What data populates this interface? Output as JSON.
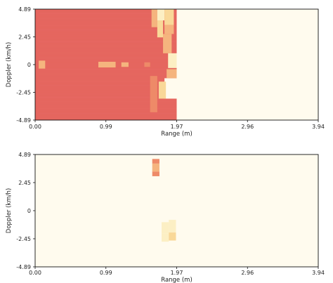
{
  "chart_data": [
    {
      "type": "heatmap",
      "xlabel": "Range (m)",
      "ylabel": "Doppler (km/h)",
      "xlim": [
        0,
        3.94
      ],
      "ylim": [
        -4.89,
        4.89
      ],
      "xticks": [
        "0.00",
        "0.99",
        "1.97",
        "2.96",
        "3.94"
      ],
      "yticks": [
        "4.89",
        "2.45",
        "0",
        "-2.45",
        "-4.89"
      ],
      "background_color": "#fffbee",
      "colors": [
        "#c8325a",
        "#d8465e",
        "#e5665f",
        "#ee8a68",
        "#f5b47e",
        "#f9d898",
        "#fcefc4",
        "#fffbee"
      ],
      "data_extent": {
        "x": [
          0,
          1.97
        ],
        "y": [
          -4.89,
          4.89
        ]
      },
      "base_intensity": 0.22,
      "cells": [
        {
          "x": [
            1.62,
            1.7
          ],
          "y": [
            3.3,
            4.89
          ],
          "v": 0.55
        },
        {
          "x": [
            1.7,
            1.8
          ],
          "y": [
            3.9,
            4.89
          ],
          "v": 0.85
        },
        {
          "x": [
            1.7,
            1.78
          ],
          "y": [
            2.4,
            3.9
          ],
          "v": 0.7
        },
        {
          "x": [
            1.8,
            1.93
          ],
          "y": [
            3.5,
            4.89
          ],
          "v": 0.75
        },
        {
          "x": [
            1.8,
            1.93
          ],
          "y": [
            2.7,
            3.5
          ],
          "v": 0.55
        },
        {
          "x": [
            1.78,
            1.9
          ],
          "y": [
            1.0,
            2.7
          ],
          "v": 0.6
        },
        {
          "x": [
            1.85,
            1.97
          ],
          "y": [
            -0.3,
            1.0
          ],
          "v": 0.85
        },
        {
          "x": [
            1.8,
            1.97
          ],
          "y": [
            -3.0,
            -1.2
          ],
          "v": 0.95
        },
        {
          "x": [
            1.72,
            1.82
          ],
          "y": [
            -3.0,
            -1.5
          ],
          "v": 0.65
        },
        {
          "x": [
            1.83,
            1.97
          ],
          "y": [
            -1.2,
            -0.4
          ],
          "v": 0.6
        },
        {
          "x": [
            0.0,
            0.14
          ],
          "y": [
            -0.35,
            0.35
          ],
          "v": 0.6
        },
        {
          "x": [
            0.88,
            1.12
          ],
          "y": [
            -0.25,
            0.25
          ],
          "v": 0.55
        },
        {
          "x": [
            1.2,
            1.3
          ],
          "y": [
            -0.2,
            0.2
          ],
          "v": 0.5
        },
        {
          "x": [
            1.52,
            1.6
          ],
          "y": [
            -0.2,
            0.2
          ],
          "v": 0.4
        },
        {
          "x": [
            1.6,
            1.7
          ],
          "y": [
            -4.2,
            -1.0
          ],
          "v": 0.4
        },
        {
          "x": [
            0.0,
            0.05
          ],
          "y": [
            -4.89,
            4.89
          ],
          "v": 0.35
        }
      ]
    },
    {
      "type": "heatmap",
      "xlabel": "Range (m)",
      "ylabel": "Doppler (km/h)",
      "xlim": [
        0,
        3.94
      ],
      "ylim": [
        -4.89,
        4.89
      ],
      "xticks": [
        "0.00",
        "0.99",
        "1.97",
        "2.96",
        "3.94"
      ],
      "yticks": [
        "4.89",
        "2.45",
        "0",
        "-2.45",
        "-4.89"
      ],
      "background_color": "#fffbee",
      "colors": [
        "#c8325a",
        "#d8465e",
        "#e5665f",
        "#ee8a68",
        "#f5b47e",
        "#f9d898",
        "#fcefc4",
        "#fffbee"
      ],
      "data_extent": {
        "x": [
          0,
          1.97
        ],
        "y": [
          -4.89,
          4.89
        ]
      },
      "base_intensity": 1.0,
      "cells": [
        {
          "x": [
            1.63,
            1.73
          ],
          "y": [
            4.1,
            4.5
          ],
          "v": 0.45
        },
        {
          "x": [
            1.63,
            1.73
          ],
          "y": [
            3.4,
            4.1
          ],
          "v": 0.6
        },
        {
          "x": [
            1.63,
            1.73
          ],
          "y": [
            3.0,
            3.4
          ],
          "v": 0.45
        },
        {
          "x": [
            1.76,
            1.86
          ],
          "y": [
            -2.0,
            -1.0
          ],
          "v": 0.85
        },
        {
          "x": [
            1.76,
            1.86
          ],
          "y": [
            -2.7,
            -2.0
          ],
          "v": 0.8
        },
        {
          "x": [
            1.86,
            1.96
          ],
          "y": [
            -1.9,
            -0.8
          ],
          "v": 0.8
        },
        {
          "x": [
            1.86,
            1.96
          ],
          "y": [
            -2.6,
            -1.9
          ],
          "v": 0.75
        }
      ]
    }
  ]
}
